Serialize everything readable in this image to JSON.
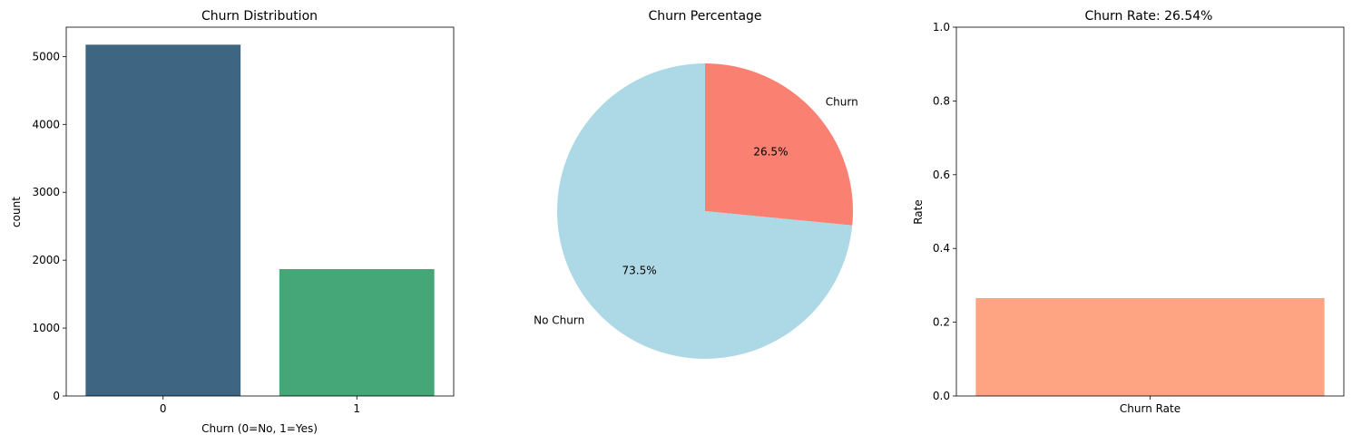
{
  "chart_data": [
    {
      "type": "bar",
      "title": "Churn Distribution",
      "xlabel": "Churn (0=No, 1=Yes)",
      "ylabel": "count",
      "categories": [
        "0",
        "1"
      ],
      "values": [
        5174,
        1869
      ],
      "colors": [
        "#3e6581",
        "#45a778"
      ],
      "ylim": [
        0,
        5432
      ],
      "yticks": [
        0,
        1000,
        2000,
        3000,
        4000,
        5000
      ],
      "grid": false
    },
    {
      "type": "pie",
      "title": "Churn Percentage",
      "labels": [
        "Churn",
        "No Churn"
      ],
      "values": [
        26.54,
        73.46
      ],
      "pct_labels": [
        "26.5%",
        "73.5%"
      ],
      "colors": [
        "#fa8072",
        "#add8e6"
      ],
      "start_angle": 90,
      "direction": "clockwise"
    },
    {
      "type": "bar",
      "title": "Churn Rate: 26.54%",
      "xlabel": "",
      "ylabel": "Rate",
      "categories": [
        "Churn Rate"
      ],
      "values": [
        0.2654
      ],
      "colors": [
        "#ffa483"
      ],
      "ylim": [
        0,
        1
      ],
      "yticks": [
        "0.0",
        "0.2",
        "0.4",
        "0.6",
        "0.8",
        "1.0"
      ],
      "grid": false
    }
  ]
}
